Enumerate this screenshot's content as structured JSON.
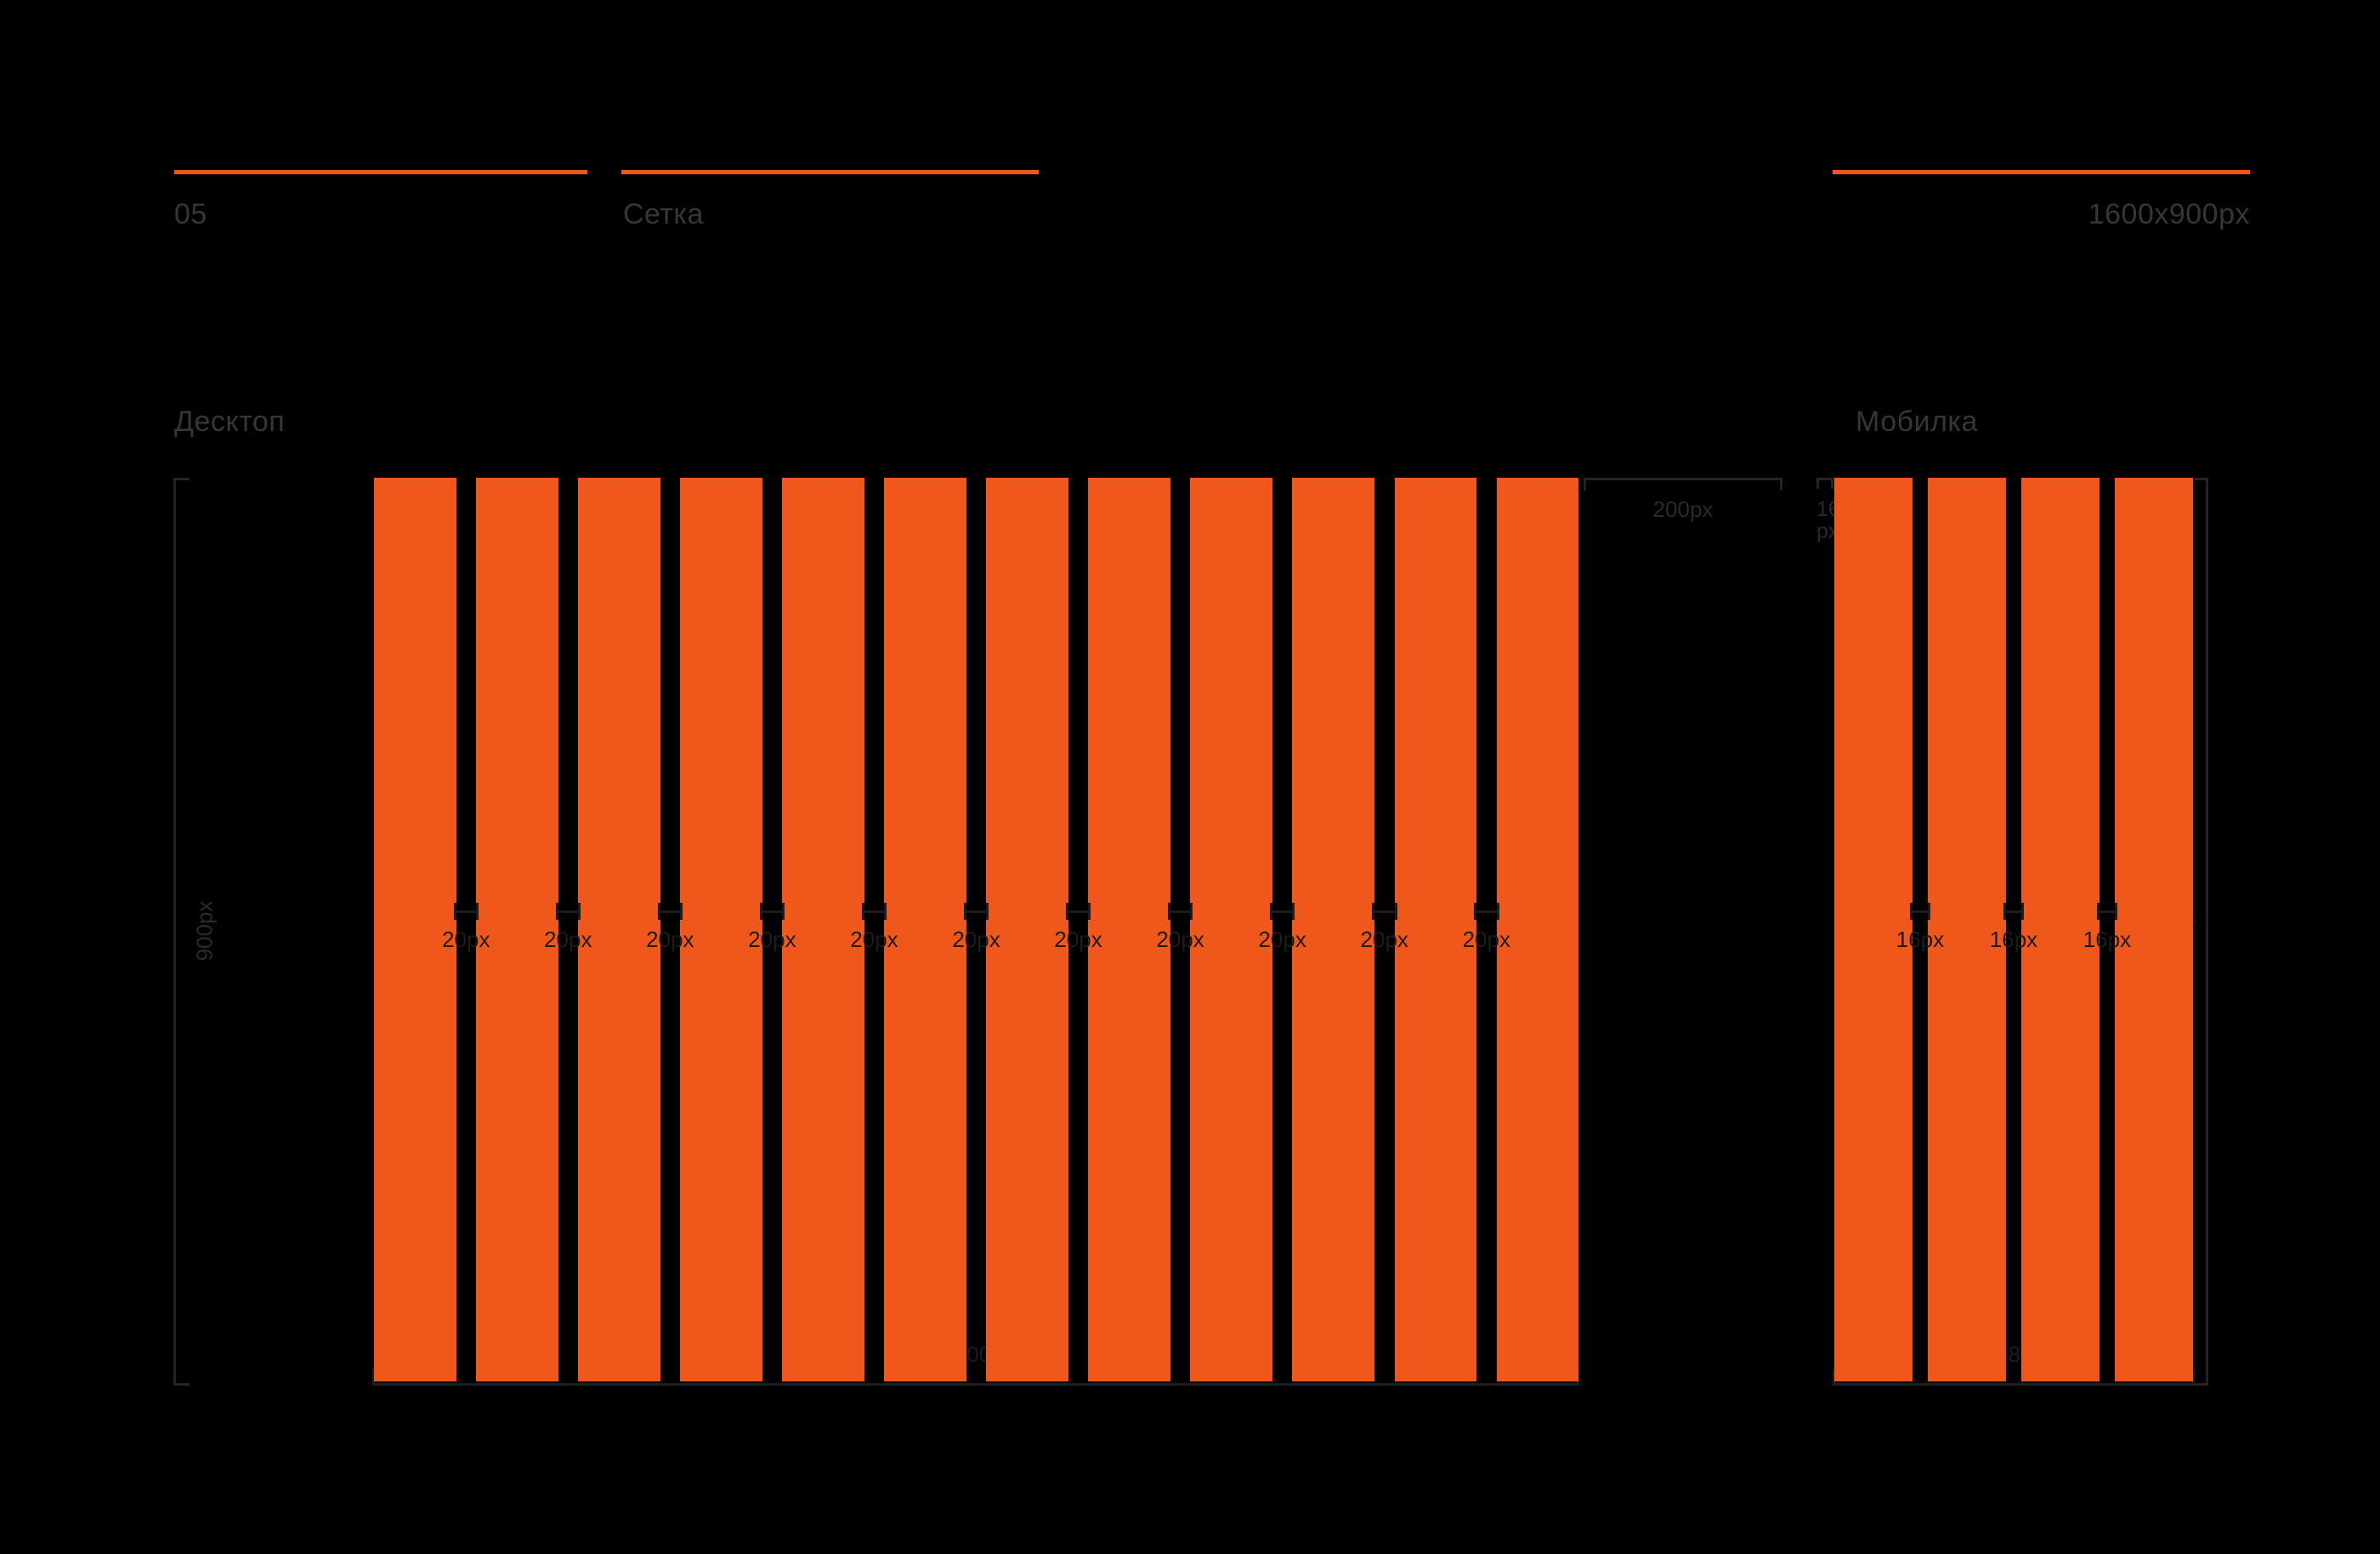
{
  "page": {
    "background": "#000000",
    "accent": "#F0581B"
  },
  "header": {
    "page_number": "05",
    "section_title": "Сетка",
    "artboard_size": "1600x900px"
  },
  "desktop": {
    "label": "Десктоп",
    "column_count": 12,
    "gutter_count": 11,
    "gutter_label": "20px",
    "height_label": "900px",
    "margin_label": "200px",
    "content_width_label": "1200px"
  },
  "mobile": {
    "label": "Мобилка",
    "column_count": 4,
    "gutter_count": 3,
    "gutter_label": "16px",
    "margin_label_line1": "16",
    "margin_label_line2": "px",
    "height_label": "900px",
    "content_width_label": "358px"
  }
}
